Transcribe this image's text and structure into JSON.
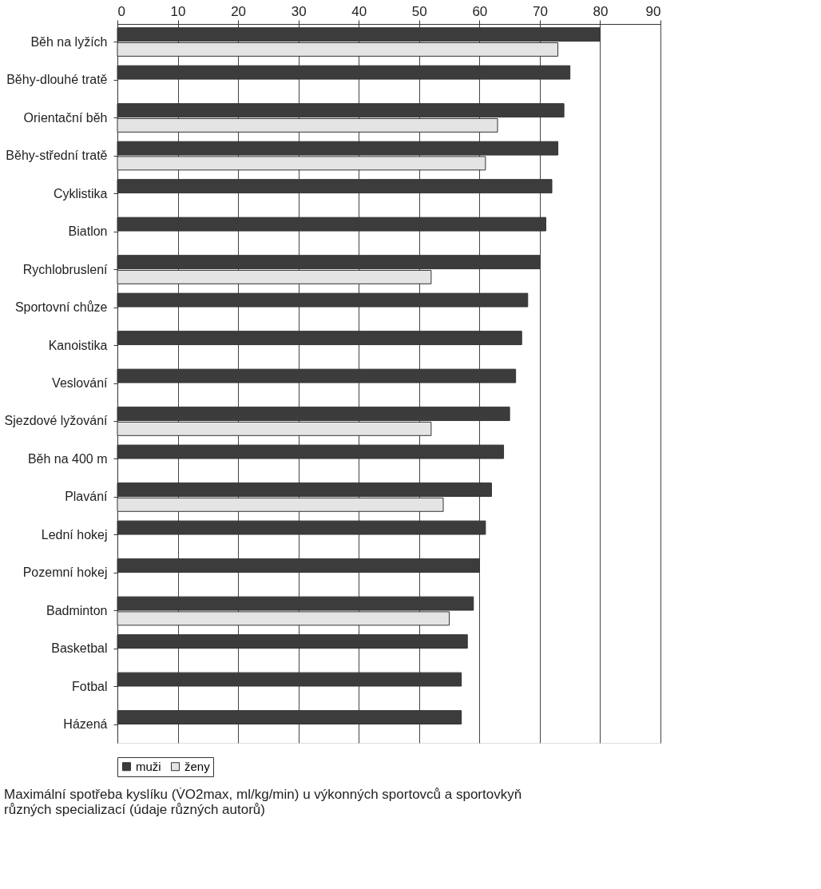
{
  "chart_data": {
    "type": "bar",
    "orientation": "horizontal",
    "title": "Maximální spotřeba kyslíku (V̇O2max, ml/kg/min) u výkonných sportovců a sportovkyň\nrůzných specializací (údaje různých autorů)",
    "categories": [
      "Běh na lyžích",
      "Běhy-dlouhé tratě",
      "Orientační běh",
      "Běhy-střední tratě",
      "Cyklistika",
      "Biatlon",
      "Rychlobruslení",
      "Sportovní chůze",
      "Kanoistika",
      "Veslování",
      "Sjezdové lyžování",
      "Běh na 400 m",
      "Plavání",
      "Lední hokej",
      "Pozemní hokej",
      "Badminton",
      "Basketbal",
      "Fotbal",
      "Házená"
    ],
    "series": [
      {
        "name": "muži",
        "color": "#3c3c3c",
        "values": [
          80,
          75,
          74,
          73,
          72,
          71,
          70,
          68,
          67,
          66,
          65,
          64,
          62,
          61,
          60,
          59,
          58,
          57,
          57
        ]
      },
      {
        "name": "ženy",
        "color": "#e4e4e4",
        "values": [
          73,
          null,
          63,
          61,
          null,
          null,
          52,
          null,
          null,
          null,
          52,
          null,
          54,
          null,
          null,
          55,
          null,
          null,
          null
        ]
      }
    ],
    "xlim": [
      0,
      90
    ],
    "xticks": [
      0,
      10,
      20,
      30,
      40,
      50,
      60,
      70,
      80,
      90
    ],
    "grid": "x",
    "legend": "bottom"
  }
}
